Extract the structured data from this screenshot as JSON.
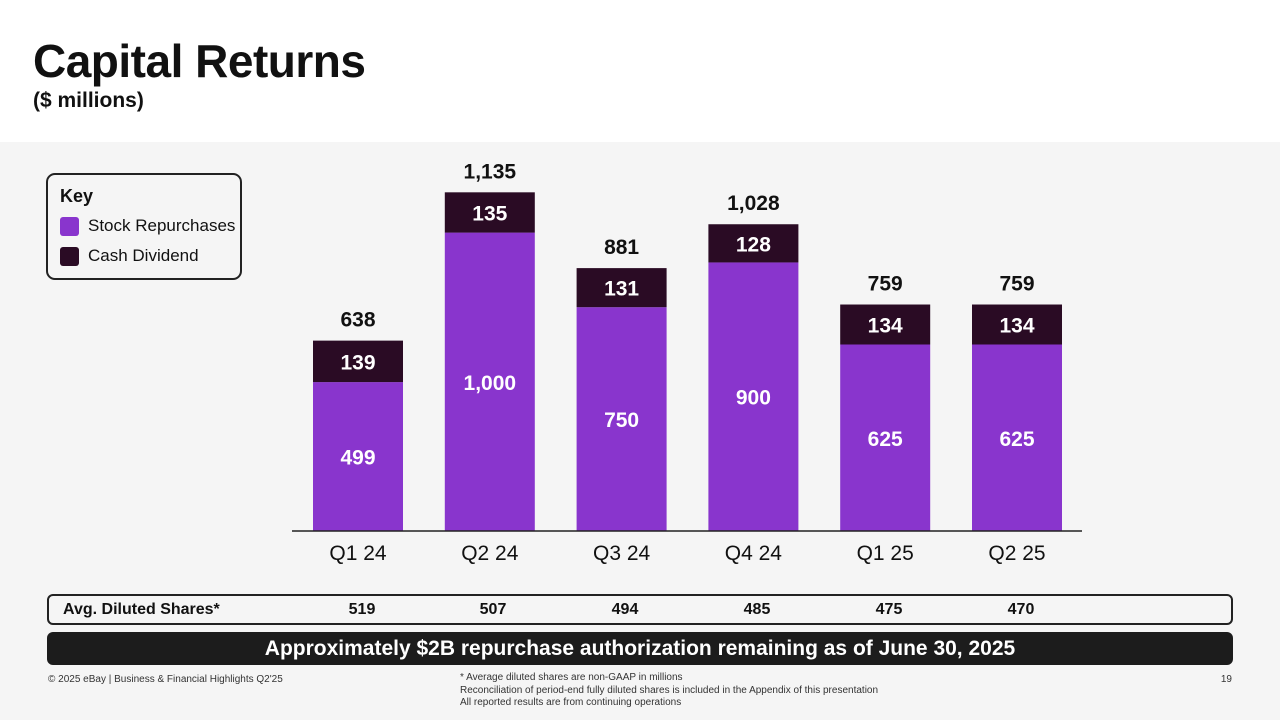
{
  "header": {
    "title": "Capital Returns",
    "subtitle": "($ millions)"
  },
  "legend": {
    "title": "Key",
    "items": [
      {
        "label": "Stock Repurchases",
        "color": "#8935cd"
      },
      {
        "label": "Cash Dividend",
        "color": "#2a0b24"
      }
    ]
  },
  "chart_data": {
    "type": "bar",
    "stacked": true,
    "categories": [
      "Q1 24",
      "Q2 24",
      "Q3 24",
      "Q4 24",
      "Q1 25",
      "Q2 25"
    ],
    "series": [
      {
        "name": "Stock Repurchases",
        "values": [
          499,
          1000,
          750,
          900,
          625,
          625
        ],
        "labels": [
          "499",
          "1,000",
          "750",
          "900",
          "625",
          "625"
        ],
        "color": "#8935cd"
      },
      {
        "name": "Cash Dividend",
        "values": [
          139,
          135,
          131,
          128,
          134,
          134
        ],
        "labels": [
          "139",
          "135",
          "131",
          "128",
          "134",
          "134"
        ],
        "color": "#2a0b24"
      }
    ],
    "totals": [
      638,
      1135,
      881,
      1028,
      759,
      759
    ],
    "total_labels": [
      "638",
      "1,135",
      "881",
      "1,028",
      "759",
      "759"
    ],
    "ylim": [
      0,
      1250
    ],
    "title": "Capital Returns",
    "ylabel": "$ millions",
    "xlabel": ""
  },
  "shares": {
    "label": "Avg. Diluted Shares*",
    "values": [
      "519",
      "507",
      "494",
      "485",
      "475",
      "470"
    ]
  },
  "banner": {
    "text": "Approximately $2B repurchase authorization remaining as of June 30, 2025"
  },
  "footer": {
    "copyright": "© 2025 eBay | Business & Financial Highlights Q2'25",
    "notes": [
      "* Average diluted shares are non-GAAP in millions",
      "Reconciliation of period-end fully diluted shares is included in the Appendix of this presentation",
      "All reported results are from continuing operations"
    ],
    "page": "19"
  }
}
